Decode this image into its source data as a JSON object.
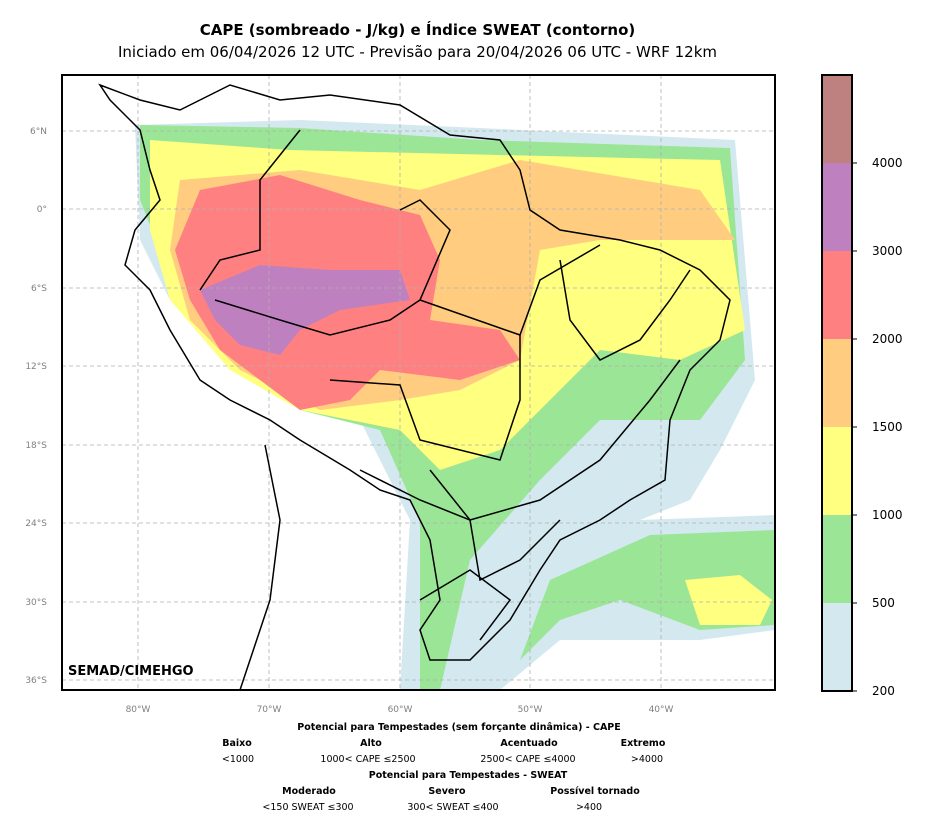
{
  "header": {
    "title": "CAPE (sombreado - J/kg) e Índice SWEAT (contorno)",
    "subtitle": "Iniciado em 06/04/2026 12 UTC - Previsão para 20/04/2026 06 UTC - WRF 12km"
  },
  "map": {
    "credit": "SEMAD/CIMEHGO",
    "lon_ticks": [
      "80°W",
      "70°W",
      "60°W",
      "50°W",
      "40°W"
    ],
    "lat_ticks": [
      "6°N",
      "0°",
      "6°S",
      "12°S",
      "18°S",
      "24°S",
      "30°S",
      "36°S"
    ]
  },
  "colorbar": {
    "ticks": [
      "200",
      "500",
      "1000",
      "1500",
      "2000",
      "3000",
      "4000"
    ],
    "colors": [
      "#d3e9ef",
      "#9be597",
      "#ffff80",
      "#ffcc80",
      "#ff8080",
      "#bf80bf",
      "#bf8080"
    ]
  },
  "legend": {
    "cape_title": "Potencial para Tempestades (sem forçante dinâmica) - CAPE",
    "cape_classes": [
      {
        "label": "Baixo",
        "range": "<1000"
      },
      {
        "label": "Alto",
        "range": "1000< CAPE ≤2500"
      },
      {
        "label": "Acentuado",
        "range": "2500< CAPE ≤4000"
      },
      {
        "label": "Extremo",
        "range": ">4000"
      }
    ],
    "sweat_title": "Potencial para Tempestades - SWEAT",
    "sweat_classes": [
      {
        "label": "Moderado",
        "range": "<150 SWEAT ≤300"
      },
      {
        "label": "Severo",
        "range": "300< SWEAT ≤400"
      },
      {
        "label": "Possível tornado",
        "range": ">400"
      }
    ]
  }
}
